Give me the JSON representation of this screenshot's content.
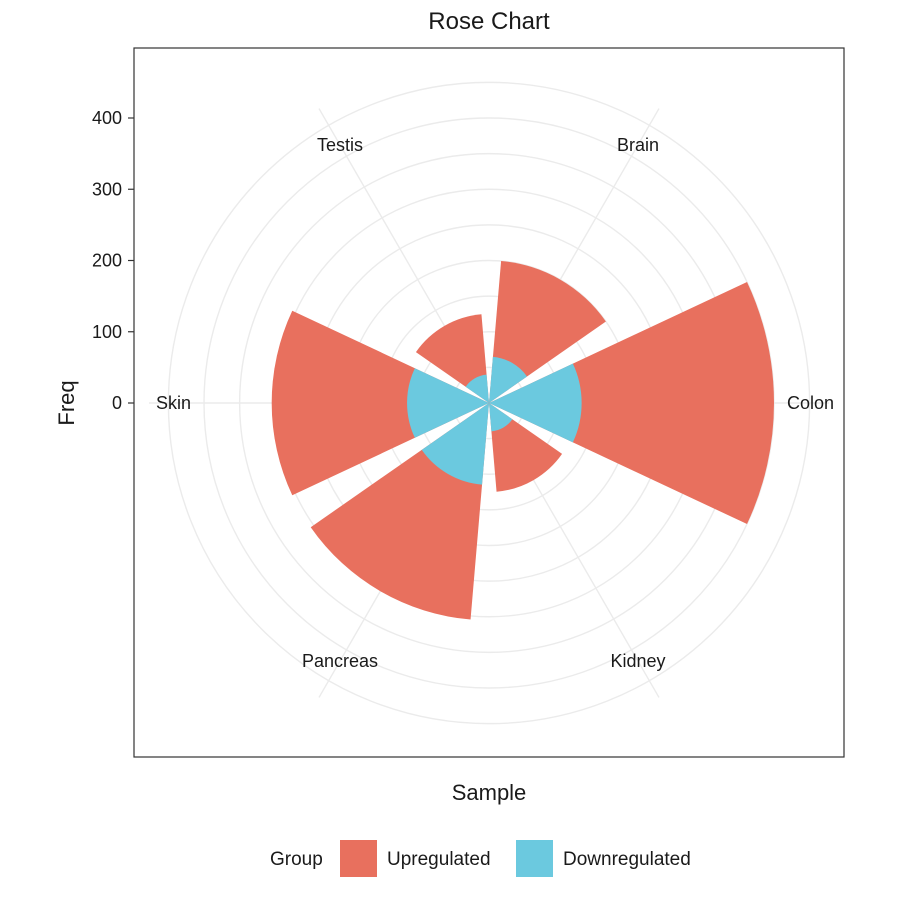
{
  "chart_data": {
    "type": "bar",
    "subtype": "rose",
    "title": "Rose Chart",
    "xlabel": "Sample",
    "ylabel": "Freq",
    "categories": [
      "Colon",
      "Kidney",
      "Pancreas",
      "Skin",
      "Testis",
      "Brain"
    ],
    "yticks": [
      0,
      100,
      200,
      300,
      400
    ],
    "ylim": [
      0,
      400
    ],
    "grid": true,
    "legend": {
      "title": "Group",
      "position": "bottom",
      "entries": [
        "Upregulated",
        "Downregulated"
      ]
    },
    "series": [
      {
        "name": "Upregulated",
        "color": "#E8705E",
        "values": [
          400,
          125,
          305,
          305,
          125,
          200
        ]
      },
      {
        "name": "Downregulated",
        "color": "#6BC9DF",
        "values": [
          130,
          40,
          115,
          115,
          40,
          65
        ]
      }
    ]
  }
}
